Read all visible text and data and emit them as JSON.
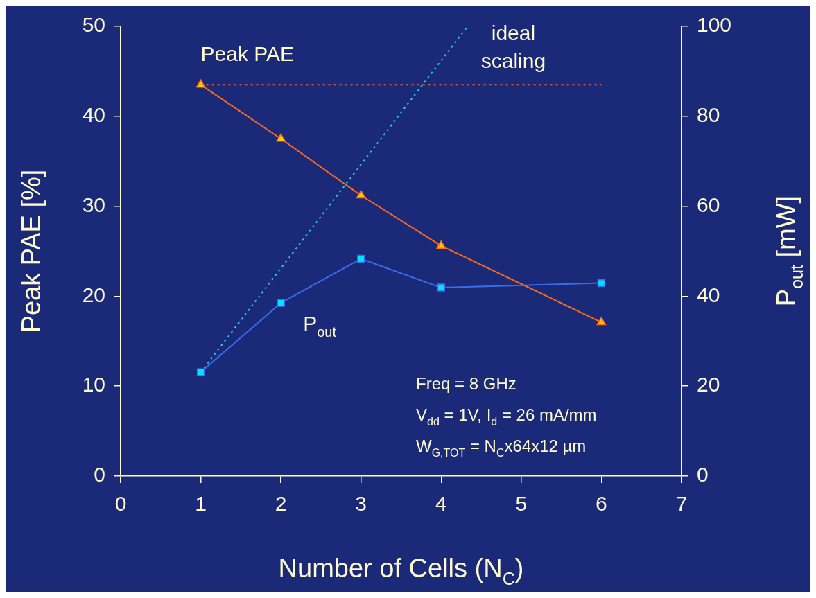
{
  "chart_data": {
    "type": "line",
    "xlabel": "Number of Cells (N$_{C}$)",
    "ylabel": "Peak PAE [%]",
    "y2label": "P$_{out}$ [mW]",
    "xlim": [
      0,
      7
    ],
    "xticks": [
      0,
      1,
      2,
      3,
      4,
      5,
      6,
      7
    ],
    "ylim": [
      0,
      50
    ],
    "yticks": [
      0,
      10,
      20,
      30,
      40,
      50
    ],
    "y2lim": [
      0,
      100
    ],
    "y2ticks": [
      0,
      20,
      40,
      60,
      80,
      100
    ],
    "grid": false,
    "legend": false,
    "series": [
      {
        "name": "Peak PAE",
        "color": "#ff6a1a",
        "x": [
          1,
          2,
          3,
          4,
          6
        ],
        "values": [
          43.5,
          37.5,
          31.2,
          25.6,
          17.1
        ],
        "marker": "triangle",
        "line_style": "solid"
      },
      {
        "name": "P$_{out}$",
        "color": "#3a6cf0",
        "x": [
          1,
          2,
          3,
          4,
          6
        ],
        "values": [
          23.1,
          38.5,
          48.3,
          41.9,
          42.9
        ],
        "marker": "square",
        "line_style": "solid",
        "axis": "y2"
      },
      {
        "name": "ideal scaling",
        "color": "#22ccee",
        "x": [
          1,
          4.33
        ],
        "values": [
          23.1,
          100
        ],
        "marker": "none",
        "line_style": "dotted",
        "axis": "y2"
      },
      {
        "color": "#ff6a1a",
        "x": [
          1,
          6
        ],
        "values": [
          43.5,
          43.5
        ],
        "marker": "none",
        "line_style": "dotted"
      }
    ],
    "annotations": [
      "Freq = 8 GHz",
      "V$_{dd}$ = 1V, I$_{d}$ = 26 mA/mm",
      "W$_{G,TOT}$ = N$_{C}$x64x12 µm"
    ]
  }
}
